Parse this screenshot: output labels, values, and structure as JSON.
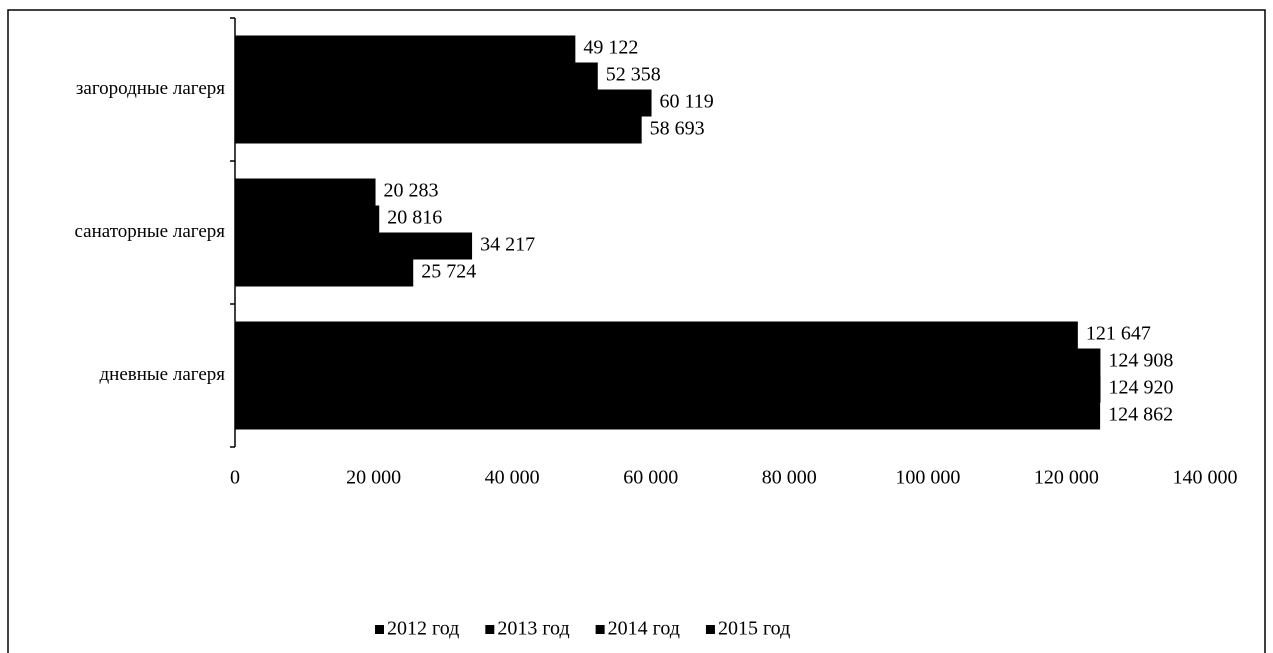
{
  "chart_data": {
    "type": "bar",
    "orientation": "horizontal",
    "categories": [
      "загородные лагеря",
      "санаторные лагеря",
      "дневные лагеря"
    ],
    "series": [
      {
        "name": "2012 год",
        "color": "#000000",
        "values": [
          49122,
          20283,
          121647
        ],
        "value_labels": [
          "49 122",
          "20 283",
          "121 647"
        ]
      },
      {
        "name": "2013 год",
        "color": "#000000",
        "values": [
          52358,
          20816,
          124908
        ],
        "value_labels": [
          "52 358",
          "20 816",
          "124 908"
        ]
      },
      {
        "name": "2014 год",
        "color": "#000000",
        "values": [
          60119,
          34217,
          124920
        ],
        "value_labels": [
          "60 119",
          "34 217",
          "124 920"
        ]
      },
      {
        "name": "2015 год",
        "color": "#000000",
        "values": [
          58693,
          25724,
          124862
        ],
        "value_labels": [
          "58 693",
          "25 724",
          "124 862"
        ]
      }
    ],
    "xlim": [
      0,
      140000
    ],
    "xticks": [
      0,
      {
        "value": 20000,
        "label": "20 000"
      },
      {
        "value": 40000,
        "label": "40 000"
      },
      {
        "value": 60000,
        "label": "60 000"
      },
      {
        "value": 80000,
        "label": "80 000"
      },
      {
        "value": 100000,
        "label": "100 000"
      },
      {
        "value": 120000,
        "label": "120 000"
      },
      {
        "value": 140000,
        "label": "140 000"
      }
    ],
    "legend": "bottom"
  }
}
